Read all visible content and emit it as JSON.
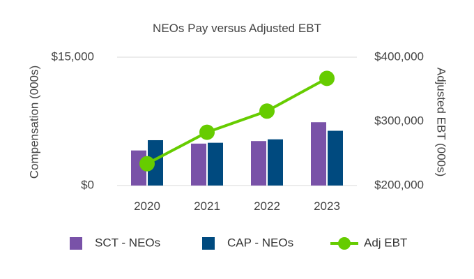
{
  "chart_data": {
    "type": "bar+line",
    "title": "NEOs Pay versus Adjusted EBT",
    "categories": [
      "2020",
      "2021",
      "2022",
      "2023"
    ],
    "left_axis": {
      "label": "Compensation (000s)",
      "range": [
        0,
        15000
      ],
      "tick_labels": [
        "$0",
        "$15,000"
      ]
    },
    "right_axis": {
      "label": "Adjusted EBT (000s)",
      "range": [
        200000,
        400000
      ],
      "tick_labels": [
        "$200,000",
        "$300,000",
        "$400,000"
      ]
    },
    "series": [
      {
        "name": "SCT - NEOs",
        "type": "bar",
        "axis": "left",
        "color": "#7952a8",
        "values": [
          4100,
          4900,
          5200,
          7400
        ]
      },
      {
        "name": "CAP - NEOs",
        "type": "bar",
        "axis": "left",
        "color": "#004a7f",
        "values": [
          5300,
          5000,
          5400,
          6400
        ]
      },
      {
        "name": "Adj EBT",
        "type": "line",
        "axis": "right",
        "color": "#66cc00",
        "values": [
          234000,
          283000,
          316000,
          367000
        ]
      }
    ],
    "legend": [
      "SCT - NEOs",
      "CAP - NEOs",
      "Adj EBT"
    ],
    "legend_position": "bottom",
    "grid": false
  }
}
